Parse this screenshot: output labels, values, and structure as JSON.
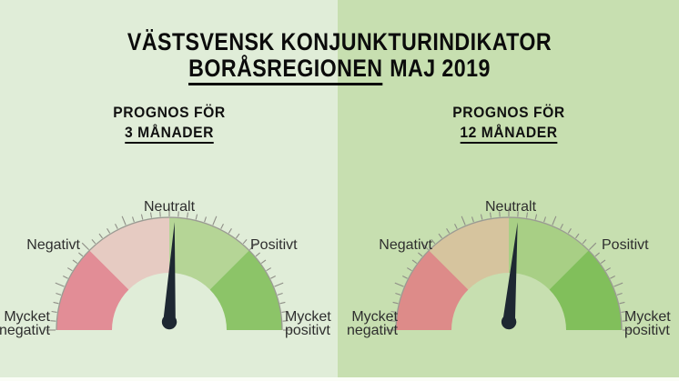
{
  "header": {
    "line1": "VÄSTSVENSK KONJUNKTURINDIKATOR",
    "line2_underlined": "BORÅSREGIONEN",
    "line2_rest": "MAJ 2019"
  },
  "background": {
    "left_half": "#e0edd8",
    "right_half": "#c7dfb0",
    "bottom_strip": "#fbfdf7"
  },
  "chart_data": {
    "type": "gauge",
    "title": "VÄSTSVENSK KONJUNKTURINDIKATOR BORÅSREGIONEN MAJ 2019",
    "scale": [
      "Mycket negativt",
      "Negativt",
      "Neutralt",
      "Positivt",
      "Mycket positivt"
    ],
    "arc_degrees": 180,
    "ticks": {
      "step_deg": 4.5,
      "major_every": 5,
      "minor_len": 6,
      "major_len": 10.5,
      "color": "#8e8e86"
    },
    "outline_color": "#9b9b93",
    "gauges": [
      {
        "heading_line1": "PROGNOS FÖR",
        "heading_line2": "3 MÅNADER",
        "labels": {
          "top": "Neutralt",
          "left": "Negativt",
          "right": "Positivt",
          "bottom_left_line1": "Mycket",
          "bottom_left_line2": "negativt",
          "bottom_right_line1": "Mycket",
          "bottom_right_line2": "positivt"
        },
        "segments": [
          {
            "label": "Mycket negativt",
            "from_deg": 180,
            "to_deg": 135,
            "color": "#e28d96"
          },
          {
            "label": "Negativt",
            "from_deg": 135,
            "to_deg": 90,
            "color": "#e6cbc2"
          },
          {
            "label": "Positivt",
            "from_deg": 90,
            "to_deg": 45,
            "color": "#b5d596"
          },
          {
            "label": "Mycket positivt",
            "from_deg": 45,
            "to_deg": 0,
            "color": "#8cc468"
          }
        ],
        "needle": {
          "angle_deg_from_vertical": 3,
          "value_normalized": 0.517,
          "reading": "strax över Neutralt (svagt positivt)",
          "color": "#1e2832"
        }
      },
      {
        "heading_line1": "PROGNOS FÖR",
        "heading_line2": "12 MÅNADER",
        "labels": {
          "top": "Neutralt",
          "left": "Negativt",
          "right": "Positivt",
          "bottom_left_line1": "Mycket",
          "bottom_left_line2": "negativt",
          "bottom_right_line1": "Mycket",
          "bottom_right_line2": "positivt"
        },
        "segments": [
          {
            "label": "Mycket negativt",
            "from_deg": 180,
            "to_deg": 135,
            "color": "#dd8b89"
          },
          {
            "label": "Negativt",
            "from_deg": 135,
            "to_deg": 90,
            "color": "#d6c49e"
          },
          {
            "label": "Positivt",
            "from_deg": 90,
            "to_deg": 45,
            "color": "#a8cf85"
          },
          {
            "label": "Mycket positivt",
            "from_deg": 45,
            "to_deg": 0,
            "color": "#81bf5b"
          }
        ],
        "needle": {
          "angle_deg_from_vertical": 5,
          "value_normalized": 0.528,
          "reading": "strax över Neutralt (svagt positivt)",
          "color": "#1e2832"
        }
      }
    ]
  }
}
